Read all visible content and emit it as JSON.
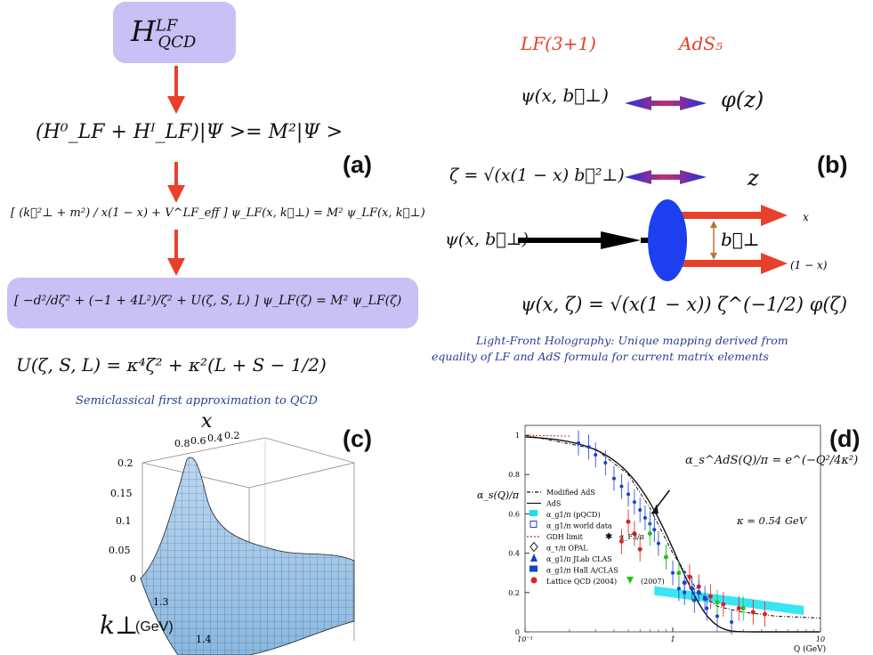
{
  "panel_a": {
    "label": "(a)",
    "h_qcd": "H^LF_QCD",
    "eq1": "(H⁰_LF + Hᴵ_LF)|Ψ >= M²|Ψ >",
    "eq2": "[ (k⃗²⊥ + m²) / x(1 − x) + V^LF_eff ] ψ_LF(x, k⃗⊥) = M² ψ_LF(x, k⃗⊥)",
    "eq3": "[ −d²/dζ² + (−1 + 4L²)/ζ² + U(ζ, S, L) ] ψ_LF(ζ) = M² ψ_LF(ζ)",
    "eq4": "U(ζ, S, L) = κ⁴ζ² + κ²(L + S − 1/2)"
  },
  "panel_b": {
    "label": "(b)",
    "header_lf": "LF(3+1)",
    "header_ads": "AdS₅",
    "psi_xb": "ψ(x, b⃗⊥)",
    "phi_z": "φ(z)",
    "zeta_def": "ζ = √(x(1 − x) b⃗²⊥)",
    "z": "z",
    "psi_in": "ψ(x, b⃗⊥)",
    "x_label": "x",
    "one_minus_x": "(1 − x)",
    "b_perp": "b⃗⊥",
    "psi_zeta": "ψ(x, ζ) = √(x(1 − x)) ζ^(−1/2) φ(ζ)",
    "caption_line1": "Light-Front Holography: Unique mapping derived from",
    "caption_line2": "equality of LF and AdS  formula for current matrix elements"
  },
  "panel_c": {
    "label": "(c)",
    "caption": "Semiclassical first approximation to QCD",
    "x_axis_title": "x",
    "x_ticks": [
      "0.8",
      "0.6",
      "0.4",
      "0.2"
    ],
    "z_ticks": [
      "0.2",
      "0.15",
      "0.1",
      "0.05",
      "0"
    ],
    "k_ticks": [
      "1.3",
      "1.4"
    ],
    "k_axis": "k⊥",
    "k_unit": "(GeV)"
  },
  "panel_d": {
    "label": "(d)",
    "formula": "α_s^AdS(Q)/π = e^(−Q²/4κ²)",
    "kappa": "κ = 0.54 GeV",
    "ylabel": "α_s(Q)/π",
    "xlabel": "Q (GeV)",
    "legend": [
      "Modified AdS",
      "AdS",
      "α_g1/π (pQCD)",
      "α_g1/π world data",
      "GDH limit",
      "α_F3/π",
      "α_τ/π OPAL",
      "α_g1/π JLab CLAS",
      "α_g1/π Hall A/CLAS",
      "Lattice QCD (2004)",
      "(2007)"
    ]
  },
  "chart_data": {
    "type": "scatter",
    "title": "",
    "xlabel": "Q (GeV)",
    "ylabel": "α_s(Q)/π",
    "x_scale": "log",
    "xlim": [
      0.1,
      10
    ],
    "ylim": [
      0,
      1.05
    ],
    "x_ticks": [
      "10⁻¹",
      "1",
      "10"
    ],
    "y_ticks": [
      "0",
      "0.2",
      "0.4",
      "0.6",
      "0.8",
      "1"
    ],
    "kappa": 0.54,
    "series": [
      {
        "name": "AdS",
        "kind": "curve",
        "formula": "exp(-Q^2/(4*0.54^2))"
      },
      {
        "name": "Modified AdS",
        "kind": "curve",
        "x": [
          0.1,
          0.3,
          0.5,
          0.7,
          1,
          1.5,
          2,
          3,
          5,
          10
        ],
        "y": [
          1.0,
          0.93,
          0.8,
          0.63,
          0.4,
          0.2,
          0.13,
          0.1,
          0.08,
          0.07
        ]
      },
      {
        "name": "α_g1/π world data",
        "kind": "points",
        "x": [
          0.23,
          0.27,
          0.3,
          0.35,
          0.4,
          0.45,
          0.5,
          0.55,
          0.6,
          0.65,
          0.7,
          0.75,
          0.8,
          0.9,
          1.0,
          1.1,
          1.2,
          1.4,
          1.7,
          2.0,
          2.5
        ],
        "y": [
          0.96,
          0.94,
          0.9,
          0.86,
          0.78,
          0.74,
          0.7,
          0.66,
          0.62,
          0.58,
          0.55,
          0.52,
          0.45,
          0.38,
          0.3,
          0.22,
          0.2,
          0.16,
          0.12,
          0.08,
          0.05
        ]
      },
      {
        "name": "Lattice QCD (2004)",
        "kind": "points",
        "x": [
          0.45,
          0.5,
          0.55,
          0.6,
          1.3,
          1.5,
          1.8,
          2.2,
          2.8,
          3.5,
          4.2
        ],
        "y": [
          0.46,
          0.56,
          0.5,
          0.42,
          0.28,
          0.23,
          0.18,
          0.14,
          0.12,
          0.1,
          0.09
        ]
      },
      {
        "name": "(2007)",
        "kind": "points",
        "x": [
          0.7,
          0.9,
          1.1,
          2.0,
          3.0
        ],
        "y": [
          0.5,
          0.38,
          0.3,
          0.15,
          0.12
        ]
      },
      {
        "name": "α_g1/π JLab CLAS",
        "kind": "points",
        "x": [
          1.2,
          1.35,
          1.5,
          1.65
        ],
        "y": [
          0.25,
          0.22,
          0.2,
          0.17
        ]
      }
    ]
  },
  "colors": {
    "box": "#c9c0f5",
    "arrow_red": "#e8402a",
    "script_blue": "#2a3f8f",
    "blob_blue": "#1c3ff0",
    "surface": "#9ec4e8",
    "band_cyan": "#18e0f0",
    "data_blue": "#1a3fd0",
    "data_red": "#e02020",
    "data_green": "#20c020"
  }
}
